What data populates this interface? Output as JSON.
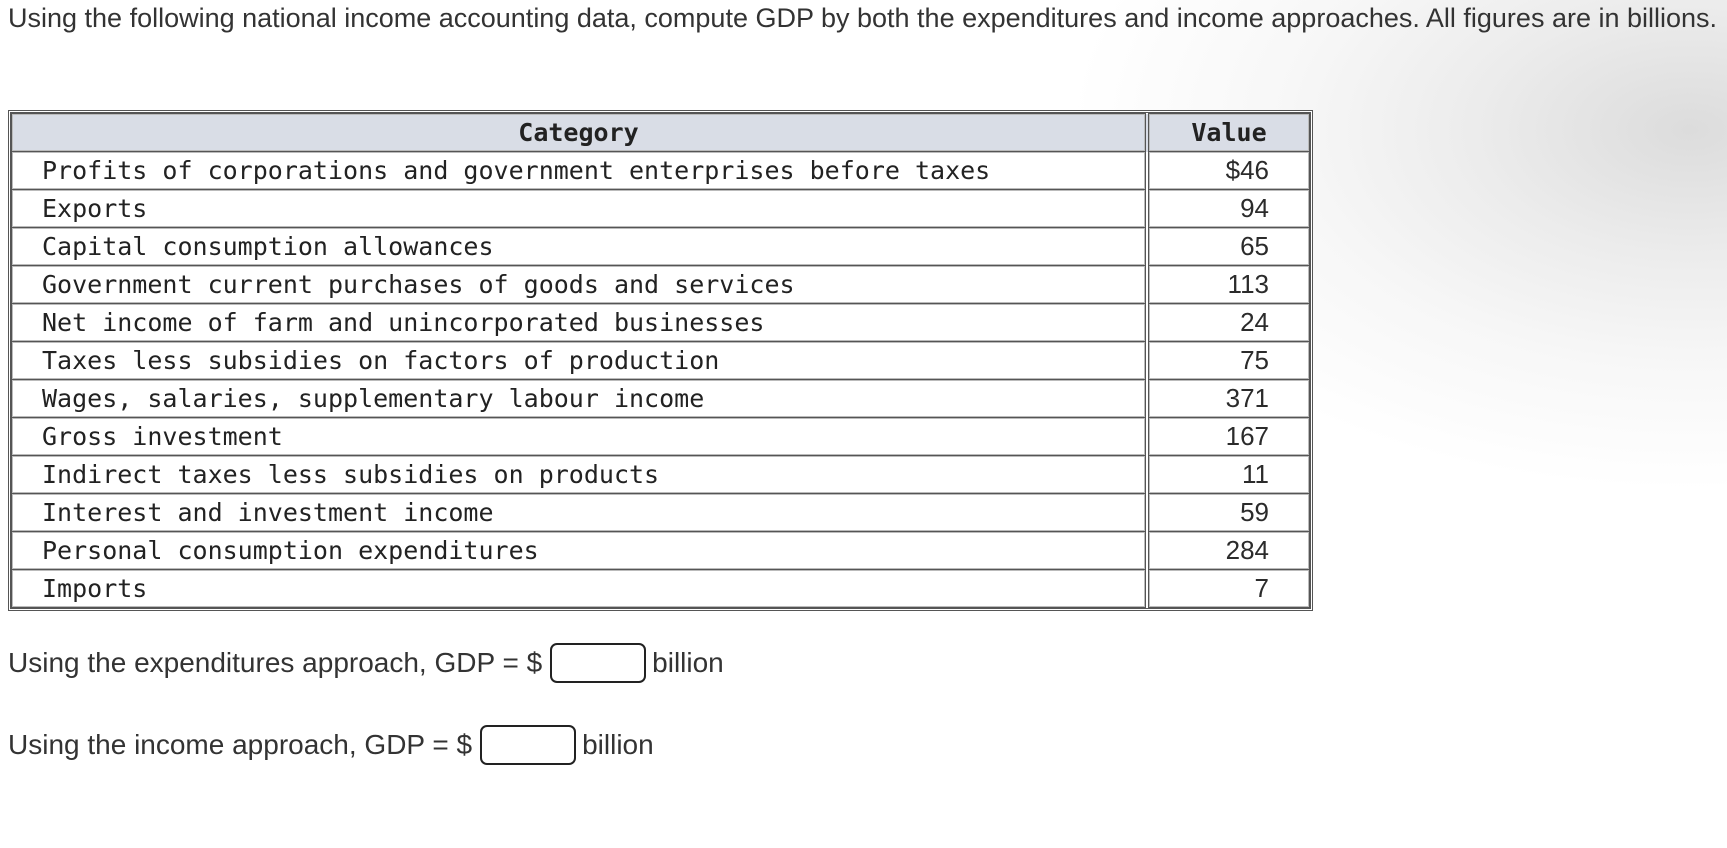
{
  "intro": "Using the following national income accounting data, compute GDP by both the expenditures and income approaches. All figures are in billions.",
  "table": {
    "headers": {
      "category": "Category",
      "value": "Value"
    },
    "rows": [
      {
        "category": "Profits of corporations and government enterprises before taxes",
        "value": "$46"
      },
      {
        "category": "Exports",
        "value": "94"
      },
      {
        "category": "Capital consumption allowances",
        "value": "65"
      },
      {
        "category": "Government current purchases of goods and services",
        "value": "113"
      },
      {
        "category": "Net income of farm and unincorporated businesses",
        "value": "24"
      },
      {
        "category": "Taxes less subsidies on factors of production",
        "value": "75"
      },
      {
        "category": "Wages, salaries, supplementary labour income",
        "value": "371"
      },
      {
        "category": "Gross investment",
        "value": "167"
      },
      {
        "category": "Indirect taxes less subsidies on products",
        "value": "11"
      },
      {
        "category": "Interest and investment income",
        "value": "59"
      },
      {
        "category": "Personal consumption expenditures",
        "value": "284"
      },
      {
        "category": "Imports",
        "value": "7"
      }
    ]
  },
  "answers": {
    "expenditures": {
      "prefix": "Using the expenditures approach, GDP = $",
      "value": "",
      "suffix": "billion"
    },
    "income": {
      "prefix": "Using the income approach, GDP = $",
      "value": "",
      "suffix": "billion"
    }
  }
}
